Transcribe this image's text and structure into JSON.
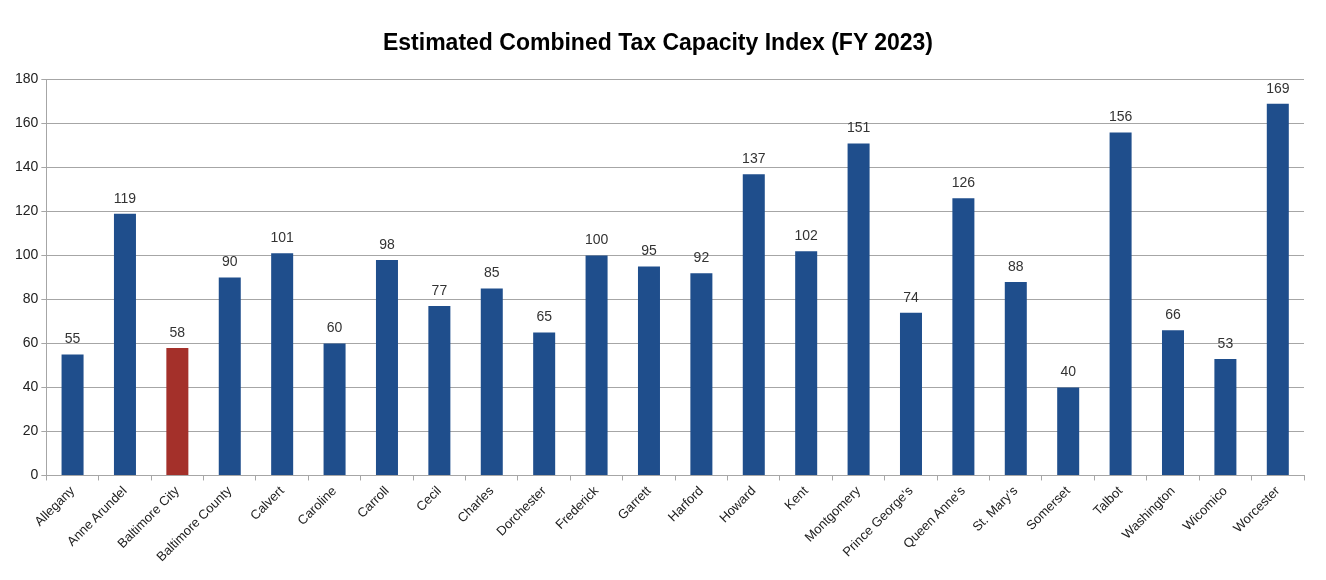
{
  "chart_data": {
    "type": "bar",
    "title": "Estimated Combined Tax Capacity Index (FY 2023)",
    "categories": [
      "Allegany",
      "Anne Arundel",
      "Baltimore City",
      "Baltimore County",
      "Calvert",
      "Caroline",
      "Carroll",
      "Cecil",
      "Charles",
      "Dorchester",
      "Frederick",
      "Garrett",
      "Harford",
      "Howard",
      "Kent",
      "Montgomery",
      "Prince George's",
      "Queen Anne's",
      "St. Mary's",
      "Somerset",
      "Talbot",
      "Washington",
      "Wicomico",
      "Worcester"
    ],
    "values": [
      55,
      119,
      58,
      90,
      101,
      60,
      98,
      77,
      85,
      65,
      100,
      95,
      92,
      137,
      102,
      151,
      74,
      126,
      88,
      40,
      156,
      66,
      53,
      169
    ],
    "colors": [
      "#1f4e8c",
      "#1f4e8c",
      "#a4302a",
      "#1f4e8c",
      "#1f4e8c",
      "#1f4e8c",
      "#1f4e8c",
      "#1f4e8c",
      "#1f4e8c",
      "#1f4e8c",
      "#1f4e8c",
      "#1f4e8c",
      "#1f4e8c",
      "#1f4e8c",
      "#1f4e8c",
      "#1f4e8c",
      "#1f4e8c",
      "#1f4e8c",
      "#1f4e8c",
      "#1f4e8c",
      "#1f4e8c",
      "#1f4e8c",
      "#1f4e8c",
      "#1f4e8c"
    ],
    "ylim": [
      0,
      180
    ],
    "yticks": [
      0,
      20,
      40,
      60,
      80,
      100,
      120,
      140,
      160,
      180
    ],
    "grid": "y",
    "data_labels": true
  }
}
